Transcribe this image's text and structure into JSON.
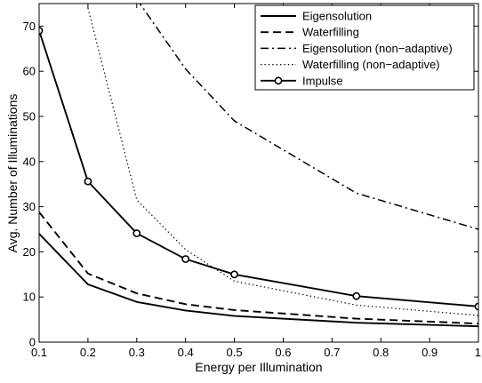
{
  "chart_data": {
    "type": "line",
    "title": "",
    "xlabel": "Energy per Illumination",
    "ylabel": "Avg. Number of Illuminations",
    "xlim": [
      0.1,
      1
    ],
    "ylim": [
      0,
      75
    ],
    "xticks": [
      0.1,
      0.2,
      0.3,
      0.4,
      0.5,
      0.6,
      0.7,
      0.8,
      0.9,
      1
    ],
    "xtick_labels": [
      "0.1",
      "0.2",
      "0.3",
      "0.4",
      "0.5",
      "0.6",
      "0.7",
      "0.8",
      "0.9",
      "1"
    ],
    "yticks": [
      0,
      10,
      20,
      30,
      40,
      50,
      60,
      70
    ],
    "ytick_labels": [
      "0",
      "10",
      "20",
      "30",
      "40",
      "50",
      "60",
      "70"
    ],
    "grid": false,
    "legend_position": "top-right",
    "series": [
      {
        "name": "Eigensolution",
        "style": "solid",
        "marker": "none",
        "color": "#000000",
        "x": [
          0.1,
          0.2,
          0.3,
          0.4,
          0.5,
          0.75,
          1.0
        ],
        "y": [
          24,
          12.8,
          8.9,
          7.0,
          5.8,
          4.3,
          3.5
        ]
      },
      {
        "name": "Waterfilling",
        "style": "dashed",
        "marker": "none",
        "color": "#000000",
        "x": [
          0.1,
          0.2,
          0.3,
          0.4,
          0.5,
          0.75,
          1.0
        ],
        "y": [
          28.8,
          15.2,
          10.8,
          8.4,
          7.1,
          5.2,
          4.1
        ]
      },
      {
        "name": "Eigensolution (non−adaptive)",
        "style": "dashdot",
        "marker": "none",
        "color": "#000000",
        "x": [
          0.3,
          0.4,
          0.5,
          0.75,
          1.0
        ],
        "y": [
          76,
          60.5,
          49,
          33,
          25
        ]
      },
      {
        "name": "Waterfilling (non−adaptive)",
        "style": "dotted",
        "marker": "none",
        "color": "#000000",
        "x": [
          0.2,
          0.3,
          0.4,
          0.5,
          0.75,
          1.0
        ],
        "y": [
          74,
          31.5,
          20.5,
          13.5,
          8.2,
          5.9
        ]
      },
      {
        "name": "Impulse",
        "style": "solid",
        "marker": "circle",
        "color": "#000000",
        "x": [
          0.1,
          0.2,
          0.3,
          0.4,
          0.5,
          0.75,
          1.0
        ],
        "y": [
          69,
          35.6,
          24.1,
          18.4,
          15.0,
          10.2,
          7.9
        ]
      }
    ]
  }
}
